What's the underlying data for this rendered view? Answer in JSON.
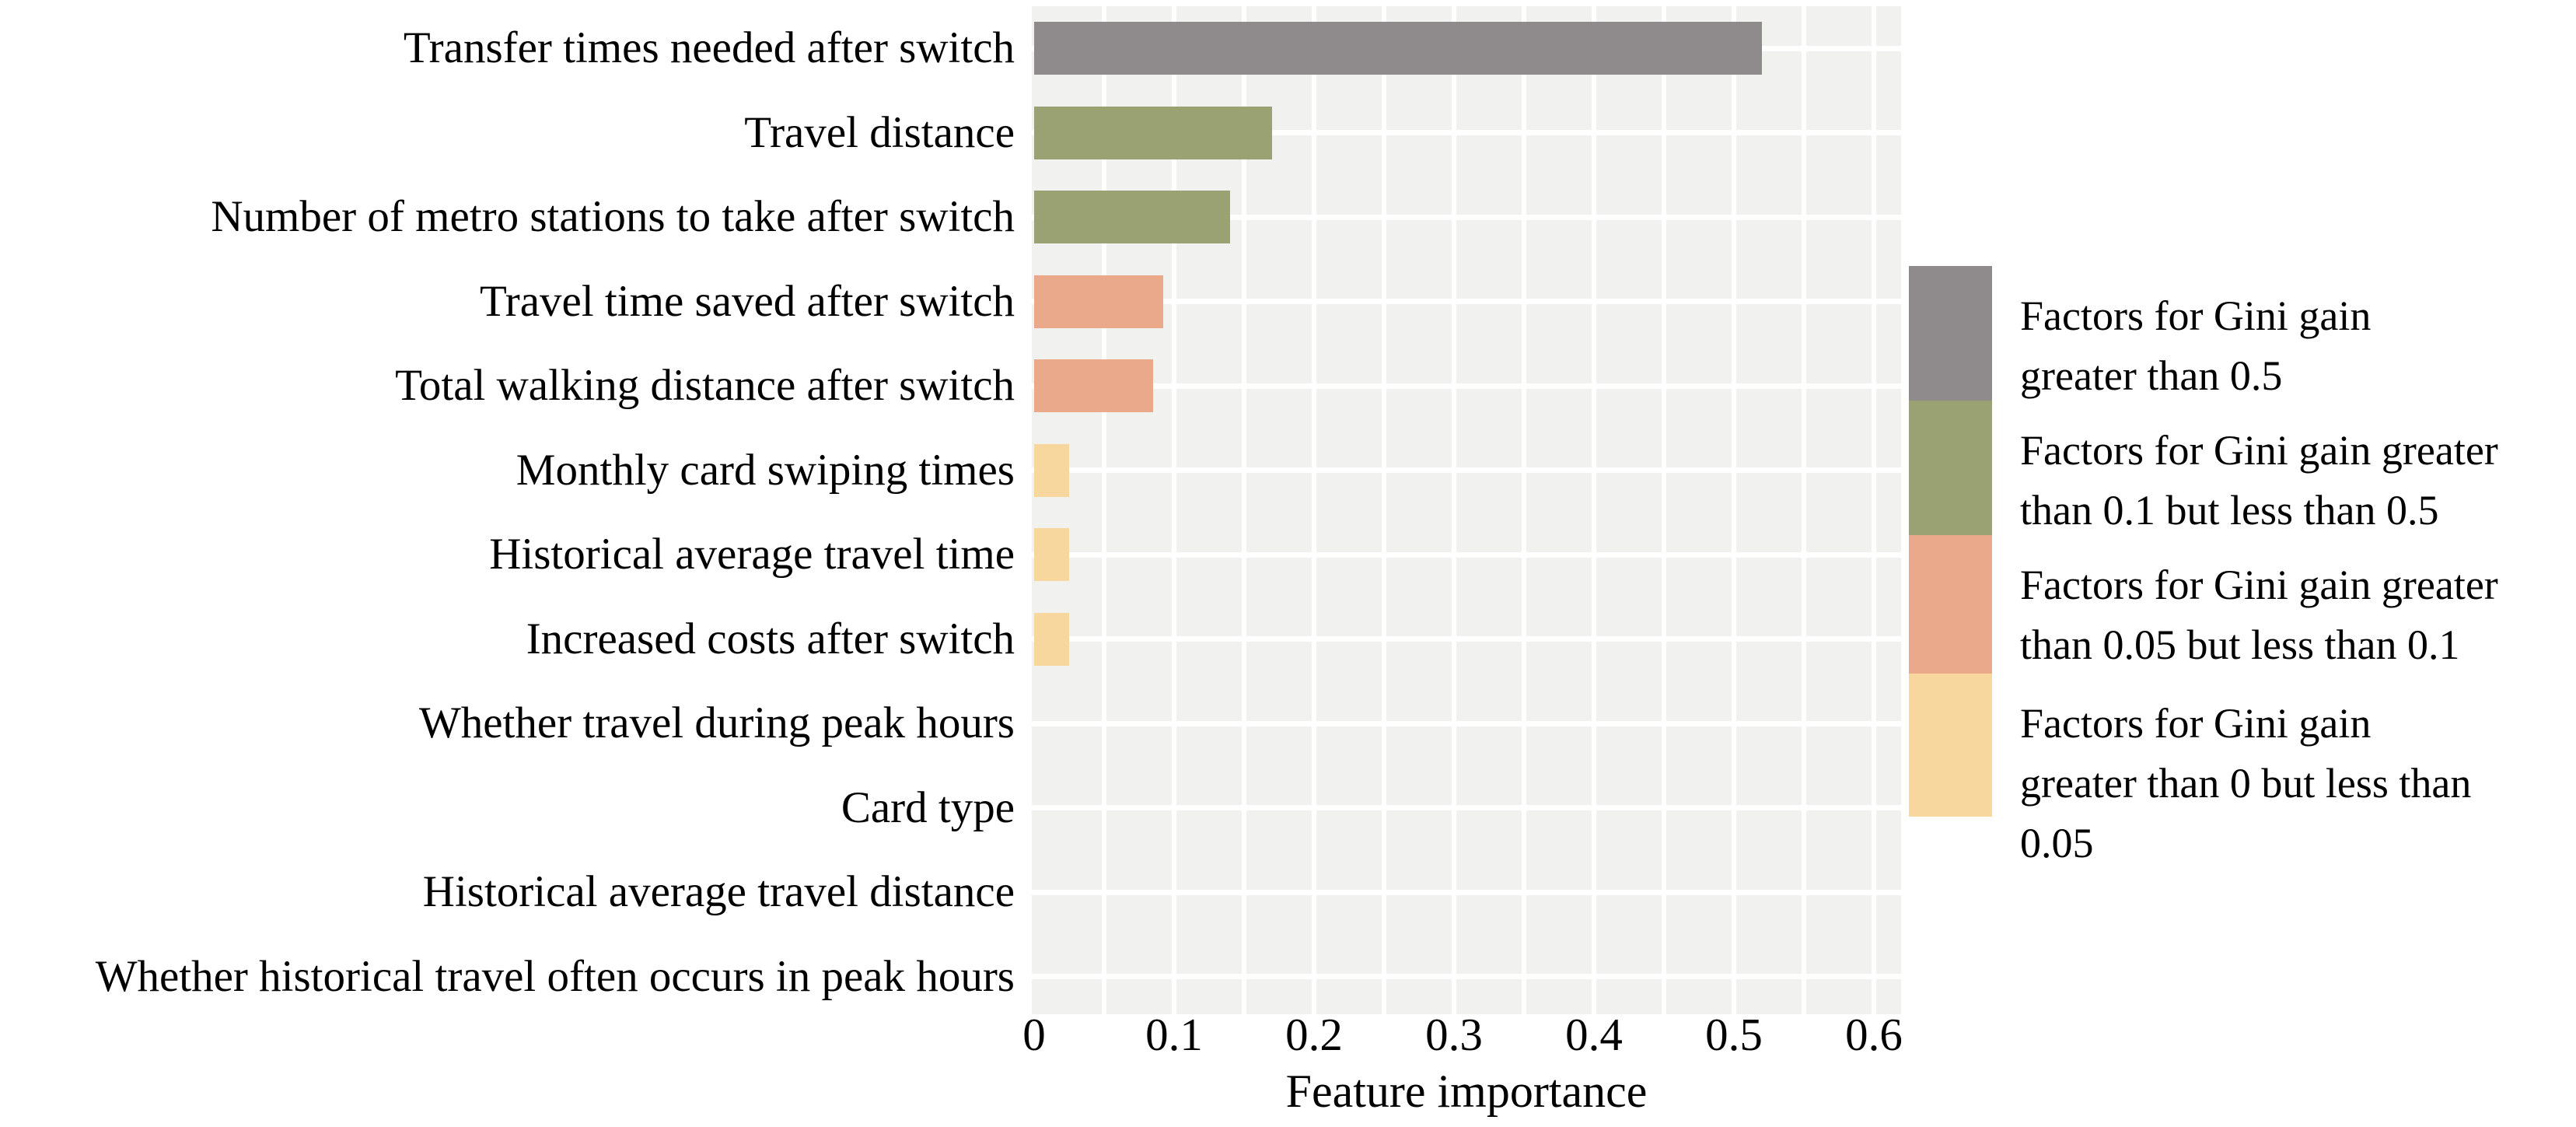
{
  "chart_data": {
    "type": "bar",
    "orientation": "horizontal",
    "title": "",
    "xlabel": "Feature importance",
    "categories": [
      "Transfer times needed after switch",
      "Travel distance",
      "Number of metro stations to take after switch",
      "Travel time saved after switch",
      "Total walking distance after switch",
      "Monthly card swiping times",
      "Historical average travel time",
      "Increased costs after switch",
      "Whether travel during peak hours",
      "Card type",
      "Historical average travel distance",
      "Whether historical travel often occurs in peak hours"
    ],
    "values": [
      0.52,
      0.17,
      0.14,
      0.092,
      0.085,
      0.025,
      0.025,
      0.025,
      0,
      0,
      0,
      0
    ],
    "bar_color_keys": [
      "gray",
      "olive",
      "olive",
      "salmon",
      "salmon",
      "yellow",
      "yellow",
      "yellow",
      null,
      null,
      null,
      null
    ],
    "xlim": [
      0,
      0.62
    ],
    "xticks": [
      0,
      0.1,
      0.2,
      0.3,
      0.4,
      0.5,
      0.6
    ],
    "xtick_labels": [
      "0",
      "0.1",
      "0.2",
      "0.3",
      "0.4",
      "0.5",
      "0.6"
    ],
    "gridline_step": 0.05,
    "grid_visible": true,
    "legend_position": "right"
  },
  "legend": {
    "entries": [
      {
        "color_key": "gray",
        "lines": [
          "Factors for Gini gain",
          "greater than 0.5"
        ]
      },
      {
        "color_key": "olive",
        "lines": [
          "Factors for Gini gain greater",
          "than 0.1 but less than 0.5"
        ]
      },
      {
        "color_key": "salmon",
        "lines": [
          "Factors for Gini gain greater",
          "than 0.05 but less than 0.1"
        ]
      },
      {
        "color_key": "yellow",
        "lines": [
          "Factors for Gini gain",
          "greater than 0 but less than",
          "0.05"
        ]
      }
    ]
  },
  "colors": {
    "gray": "#8f8b8c",
    "olive": "#9aa173",
    "salmon": "#eba98b",
    "yellow": "#f8d79e",
    "panel_background": "#f1f1ef",
    "gridline": "#ffffff",
    "text": "#000000",
    "page_background": "#ffffff"
  }
}
